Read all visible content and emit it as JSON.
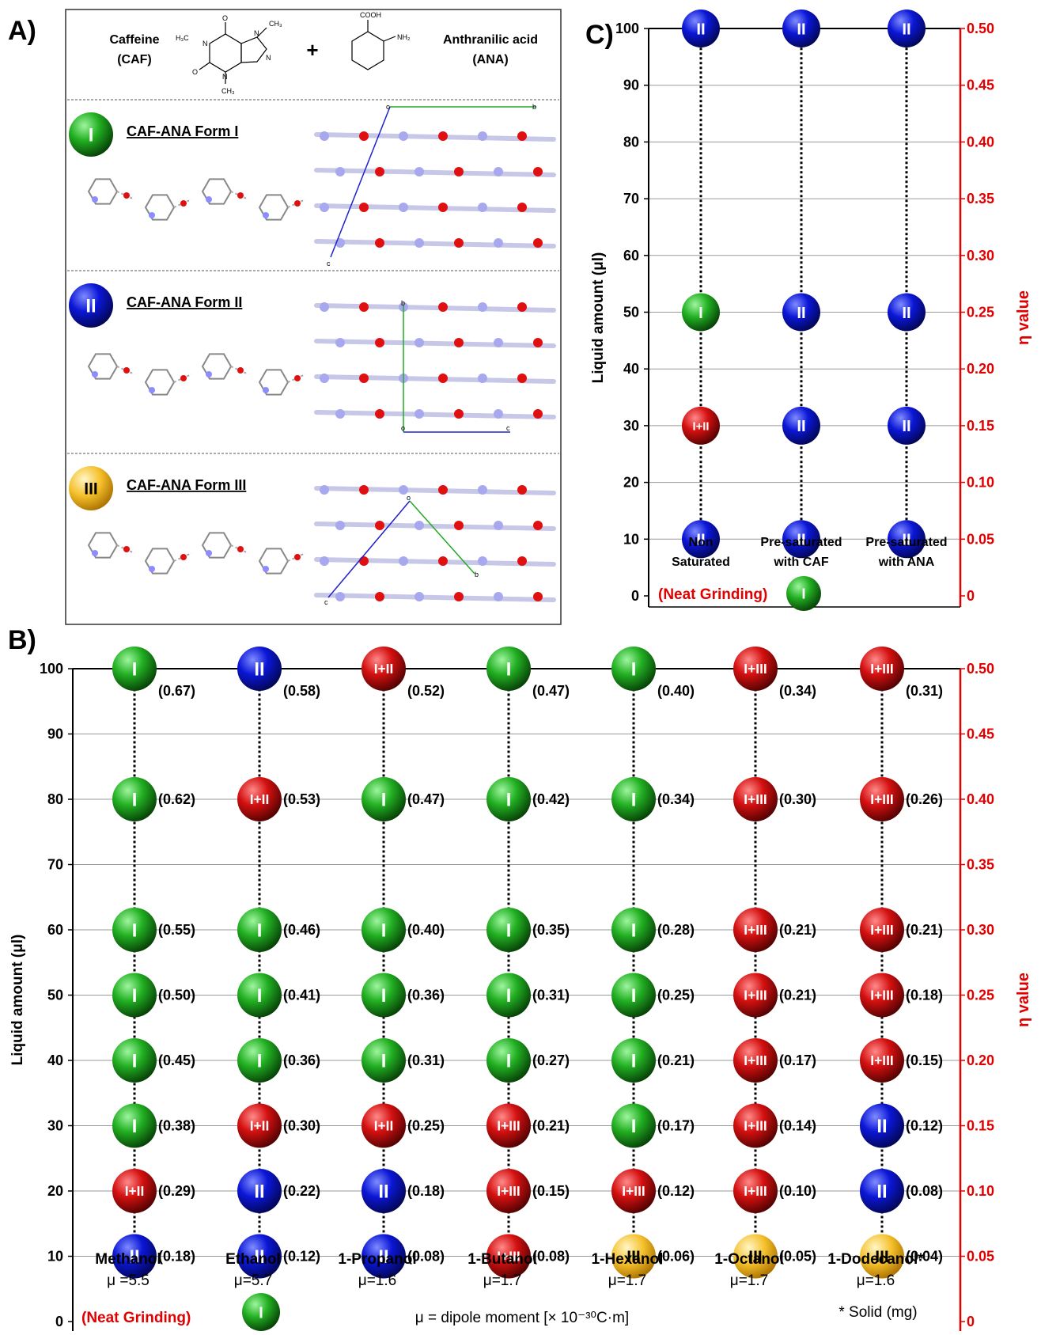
{
  "panel_a": {
    "letter": "A)",
    "caf_name": "Caffeine",
    "caf_abbr": "(CAF)",
    "plus": "+",
    "ana_name": "Anthranilic acid",
    "ana_abbr": "(ANA)",
    "chem_labels": {
      "h3c": "H₃C",
      "ch3_top": "CH₃",
      "ch3_bottom": "CH₃",
      "o1": "O",
      "o2": "O",
      "n1": "N",
      "n2": "N",
      "n3": "N",
      "n4": "N",
      "cooh": "COOH",
      "nh2": "NH₂"
    },
    "forms": [
      {
        "badge": "I",
        "title": "CAF-ANA Form I",
        "axes": {
          "o": "o",
          "b": "b",
          "c": "c"
        }
      },
      {
        "badge": "II",
        "title": "CAF-ANA Form II",
        "axes": {
          "o": "b",
          "b": "o",
          "c": "c"
        }
      },
      {
        "badge": "III",
        "title": "CAF-ANA Form III",
        "axes": {
          "o": "o",
          "b": "b",
          "c": "c"
        }
      }
    ]
  },
  "colors": {
    "I": "#1fa11f",
    "II": "#0a12c8",
    "I+II": "#cc1010",
    "I+III": "#cc1010",
    "III": "#f0b820",
    "axis_right": "#e00000"
  },
  "chart_data": [
    {
      "panel": "C)",
      "type": "scatter",
      "title": "",
      "ylabel": "Liquid amount (μl)",
      "y2label": "η value",
      "ylim": [
        0,
        100
      ],
      "y2lim": [
        0,
        0.5
      ],
      "yticks": [
        "0",
        "10",
        "20",
        "30",
        "40",
        "50",
        "60",
        "70",
        "80",
        "90",
        "100"
      ],
      "y2ticks": [
        "0",
        "0.05",
        "0.10",
        "0.15",
        "0.20",
        "0.25",
        "0.30",
        "0.35",
        "0.40",
        "0.45",
        "0.50"
      ],
      "grid": true,
      "categories": [
        {
          "label1": "Non",
          "label2": "Saturated"
        },
        {
          "label1": "Pre-saturated",
          "label2": "with CAF"
        },
        {
          "label1": "Pre-saturated",
          "label2": "with ANA"
        }
      ],
      "series": [
        {
          "category": "Non Saturated",
          "points": [
            {
              "y": 10,
              "form": "II"
            },
            {
              "y": 30,
              "form": "I+II"
            },
            {
              "y": 50,
              "form": "I"
            },
            {
              "y": 100,
              "form": "II"
            }
          ]
        },
        {
          "category": "Pre-saturated with CAF",
          "points": [
            {
              "y": 10,
              "form": "II"
            },
            {
              "y": 30,
              "form": "II"
            },
            {
              "y": 50,
              "form": "II"
            },
            {
              "y": 100,
              "form": "II"
            }
          ]
        },
        {
          "category": "Pre-saturated with ANA",
          "points": [
            {
              "y": 10,
              "form": "II"
            },
            {
              "y": 30,
              "form": "II"
            },
            {
              "y": 50,
              "form": "II"
            },
            {
              "y": 100,
              "form": "II"
            }
          ]
        }
      ],
      "neat_grinding": {
        "label": "(Neat Grinding)",
        "form": "I"
      }
    },
    {
      "panel": "B)",
      "type": "scatter",
      "title": "",
      "ylabel": "Liquid amount (μl)",
      "y2label": "η value",
      "ylim": [
        0,
        100
      ],
      "y2lim": [
        0,
        0.5
      ],
      "yticks": [
        "0",
        "10",
        "20",
        "30",
        "40",
        "50",
        "60",
        "70",
        "80",
        "90",
        "100"
      ],
      "y2ticks": [
        "0",
        "0.05",
        "0.10",
        "0.15",
        "0.20",
        "0.25",
        "0.30",
        "0.35",
        "0.40",
        "0.45",
        "0.50"
      ],
      "grid": true,
      "series": [
        {
          "name": "Methanol",
          "mu": "μ =5.5",
          "points": [
            {
              "y": 10,
              "form": "II",
              "eta": "(0.18)"
            },
            {
              "y": 20,
              "form": "I+II",
              "eta": "(0.29)"
            },
            {
              "y": 30,
              "form": "I",
              "eta": "(0.38)"
            },
            {
              "y": 40,
              "form": "I",
              "eta": "(0.45)"
            },
            {
              "y": 50,
              "form": "I",
              "eta": "(0.50)"
            },
            {
              "y": 60,
              "form": "I",
              "eta": "(0.55)"
            },
            {
              "y": 80,
              "form": "I",
              "eta": "(0.62)"
            },
            {
              "y": 100,
              "form": "I",
              "eta": "(0.67)"
            }
          ]
        },
        {
          "name": "Ethanol",
          "mu": "μ=5.7",
          "points": [
            {
              "y": 10,
              "form": "II",
              "eta": "(0.12)"
            },
            {
              "y": 20,
              "form": "II",
              "eta": "(0.22)"
            },
            {
              "y": 30,
              "form": "I+II",
              "eta": "(0.30)"
            },
            {
              "y": 40,
              "form": "I",
              "eta": "(0.36)"
            },
            {
              "y": 50,
              "form": "I",
              "eta": "(0.41)"
            },
            {
              "y": 60,
              "form": "I",
              "eta": "(0.46)"
            },
            {
              "y": 80,
              "form": "I+II",
              "eta": "(0.53)"
            },
            {
              "y": 100,
              "form": "II",
              "eta": "(0.58)"
            }
          ]
        },
        {
          "name": "1-Propanol",
          "mu": "μ=1.6",
          "points": [
            {
              "y": 10,
              "form": "II",
              "eta": "(0.08)"
            },
            {
              "y": 20,
              "form": "II",
              "eta": "(0.18)"
            },
            {
              "y": 30,
              "form": "I+II",
              "eta": "(0.25)"
            },
            {
              "y": 40,
              "form": "I",
              "eta": "(0.31)"
            },
            {
              "y": 50,
              "form": "I",
              "eta": "(0.36)"
            },
            {
              "y": 60,
              "form": "I",
              "eta": "(0.40)"
            },
            {
              "y": 80,
              "form": "I",
              "eta": "(0.47)"
            },
            {
              "y": 100,
              "form": "I+II",
              "eta": "(0.52)"
            }
          ]
        },
        {
          "name": "1-Butanol",
          "mu": "μ=1.7",
          "points": [
            {
              "y": 10,
              "form": "I+III",
              "eta": "(0.08)"
            },
            {
              "y": 20,
              "form": "I+III",
              "eta": "(0.15)"
            },
            {
              "y": 30,
              "form": "I+III",
              "eta": "(0.21)"
            },
            {
              "y": 40,
              "form": "I",
              "eta": "(0.27)"
            },
            {
              "y": 50,
              "form": "I",
              "eta": "(0.31)"
            },
            {
              "y": 60,
              "form": "I",
              "eta": "(0.35)"
            },
            {
              "y": 80,
              "form": "I",
              "eta": "(0.42)"
            },
            {
              "y": 100,
              "form": "I",
              "eta": "(0.47)"
            }
          ]
        },
        {
          "name": "1-Hexanol",
          "mu": "μ=1.7",
          "points": [
            {
              "y": 10,
              "form": "III",
              "eta": "(0.06)"
            },
            {
              "y": 20,
              "form": "I+III",
              "eta": "(0.12)"
            },
            {
              "y": 30,
              "form": "I",
              "eta": "(0.17)"
            },
            {
              "y": 40,
              "form": "I",
              "eta": "(0.21)"
            },
            {
              "y": 50,
              "form": "I",
              "eta": "(0.25)"
            },
            {
              "y": 60,
              "form": "I",
              "eta": "(0.28)"
            },
            {
              "y": 80,
              "form": "I",
              "eta": "(0.34)"
            },
            {
              "y": 100,
              "form": "I",
              "eta": "(0.40)"
            }
          ]
        },
        {
          "name": "1-Octanol",
          "mu": "μ=1.7",
          "points": [
            {
              "y": 10,
              "form": "III",
              "eta": "(0.05)"
            },
            {
              "y": 20,
              "form": "I+III",
              "eta": "(0.10)"
            },
            {
              "y": 30,
              "form": "I+III",
              "eta": "(0.14)"
            },
            {
              "y": 40,
              "form": "I+III",
              "eta": "(0.17)"
            },
            {
              "y": 50,
              "form": "I+III",
              "eta": "(0.21)"
            },
            {
              "y": 60,
              "form": "I+III",
              "eta": "(0.21)"
            },
            {
              "y": 80,
              "form": "I+III",
              "eta": "(0.30)"
            },
            {
              "y": 100,
              "form": "I+III",
              "eta": "(0.34)"
            }
          ]
        },
        {
          "name": "1-Dodecanol*",
          "mu": "μ=1.6",
          "points": [
            {
              "y": 10,
              "form": "III",
              "eta": "(0.04)"
            },
            {
              "y": 20,
              "form": "II",
              "eta": "(0.08)"
            },
            {
              "y": 30,
              "form": "II",
              "eta": "(0.12)"
            },
            {
              "y": 40,
              "form": "I+III",
              "eta": "(0.15)"
            },
            {
              "y": 50,
              "form": "I+III",
              "eta": "(0.18)"
            },
            {
              "y": 60,
              "form": "I+III",
              "eta": "(0.21)"
            },
            {
              "y": 80,
              "form": "I+III",
              "eta": "(0.26)"
            },
            {
              "y": 100,
              "form": "I+III",
              "eta": "(0.31)"
            }
          ]
        }
      ],
      "neat_grinding": {
        "label": "(Neat Grinding)",
        "form": "I"
      },
      "dipole_note": "μ = dipole moment [× 10⁻³⁰C·m]",
      "solid_note": "* Solid (mg)"
    }
  ]
}
